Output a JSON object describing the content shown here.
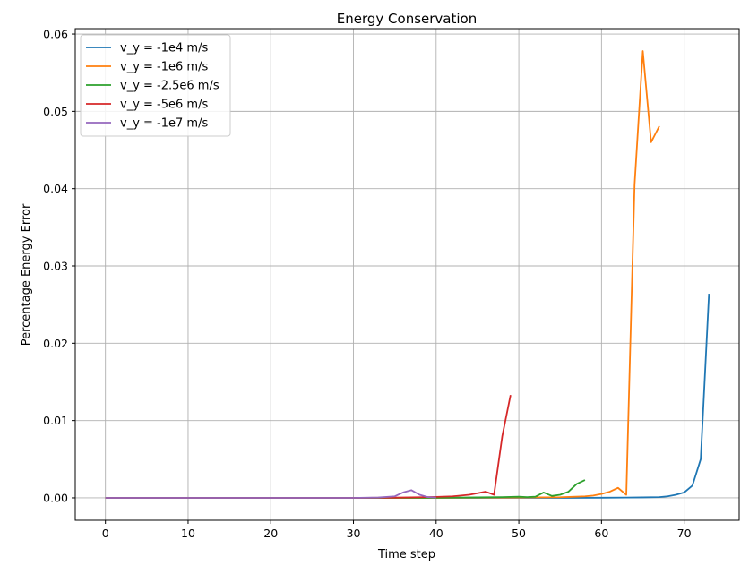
{
  "chart_data": {
    "type": "line",
    "title": "Energy Conservation",
    "xlabel": "Time step",
    "ylabel": "Percentage Energy Error",
    "xlim": [
      -3.65,
      76.65
    ],
    "ylim": [
      -0.0029,
      0.0607
    ],
    "xticks": [
      0,
      10,
      20,
      30,
      40,
      50,
      60,
      70
    ],
    "xtick_labels": [
      "0",
      "10",
      "20",
      "30",
      "40",
      "50",
      "60",
      "70"
    ],
    "yticks": [
      0.0,
      0.01,
      0.02,
      0.03,
      0.04,
      0.05,
      0.06
    ],
    "ytick_labels": [
      "0.00",
      "0.01",
      "0.02",
      "0.03",
      "0.04",
      "0.05",
      "0.06"
    ],
    "grid": true,
    "legend_position": "top-left",
    "series": [
      {
        "name": "v_y = -1e4 m/s",
        "color": "#1f77b4",
        "x": [
          0,
          5,
          10,
          15,
          20,
          25,
          30,
          35,
          40,
          45,
          50,
          55,
          60,
          63,
          65,
          67,
          68,
          69,
          70,
          71,
          72,
          73
        ],
        "y": [
          0,
          0,
          0,
          0,
          0,
          0,
          0,
          0,
          0,
          0,
          0,
          0,
          2e-05,
          4e-05,
          6e-05,
          0.0001,
          0.0002,
          0.0004,
          0.0007,
          0.0016,
          0.005,
          0.0264
        ]
      },
      {
        "name": "v_y = -1e6 m/s",
        "color": "#ff7f0e",
        "x": [
          0,
          10,
          20,
          30,
          40,
          50,
          55,
          58,
          59,
          60,
          61,
          62,
          63,
          64,
          65,
          66,
          67
        ],
        "y": [
          0,
          0,
          0,
          0,
          0,
          5e-05,
          8e-05,
          0.0002,
          0.0003,
          0.0005,
          0.0008,
          0.0013,
          0.0004,
          0.0405,
          0.0578,
          0.046,
          0.0481
        ]
      },
      {
        "name": "v_y = -2.5e6 m/s",
        "color": "#2ca02c",
        "x": [
          0,
          10,
          20,
          30,
          40,
          45,
          48,
          50,
          51,
          52,
          53,
          54,
          55,
          56,
          57,
          58
        ],
        "y": [
          0,
          0,
          0,
          0,
          2e-05,
          6e-05,
          0.0001,
          0.00015,
          0.0001,
          0.00015,
          0.0007,
          0.00025,
          0.0004,
          0.0008,
          0.0018,
          0.0023
        ]
      },
      {
        "name": "v_y = -5e6 m/s",
        "color": "#d62728",
        "x": [
          0,
          10,
          20,
          30,
          35,
          38,
          40,
          42,
          44,
          45,
          46,
          47,
          48,
          49
        ],
        "y": [
          0,
          0,
          0,
          0,
          3e-05,
          8e-05,
          0.00013,
          0.0002,
          0.0004,
          0.0006,
          0.0008,
          0.0004,
          0.008,
          0.0133
        ]
      },
      {
        "name": "v_y = -1e7 m/s",
        "color": "#9467bd",
        "x": [
          0,
          10,
          20,
          30,
          33,
          35,
          36,
          37,
          38,
          39,
          40
        ],
        "y": [
          0,
          0,
          0,
          0,
          5e-05,
          0.0002,
          0.0007,
          0.001,
          0.0004,
          0.0001,
          5e-05
        ]
      }
    ]
  }
}
